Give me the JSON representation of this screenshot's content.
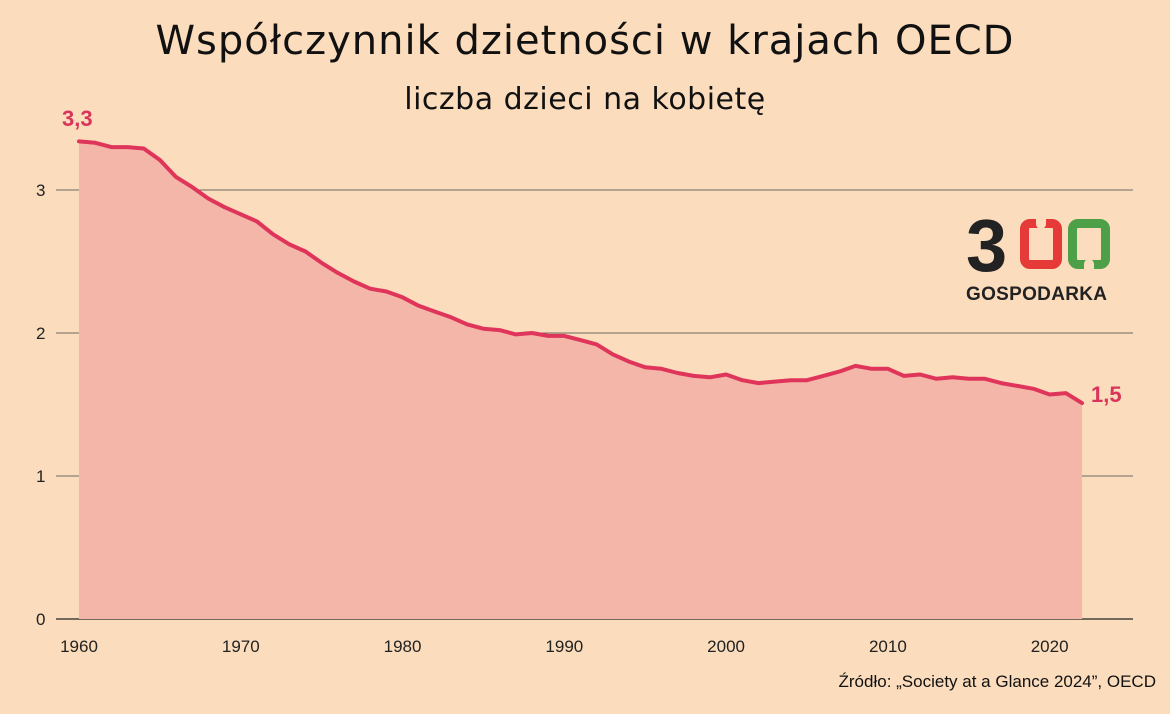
{
  "header": {
    "title": "Współczynnik dzietności w krajach OECD",
    "subtitle": "liczba dzieci na kobietę"
  },
  "source": "Źródło: „Society at a Glance 2024”, OECD",
  "logo": {
    "number": "300",
    "text": "GOSPODARKA"
  },
  "colors": {
    "background": "#fbdcbc",
    "line": "#e0355b",
    "area": "#f4b6a8",
    "grid": "#444444",
    "logo_red": "#e53a37",
    "logo_green": "#4da047"
  },
  "chart_data": {
    "type": "area",
    "title": "Współczynnik dzietności w krajach OECD",
    "subtitle": "liczba dzieci na kobietę",
    "xlabel": "",
    "ylabel": "",
    "xlim": [
      1960,
      2022
    ],
    "ylim": [
      0,
      3.5
    ],
    "xticks": [
      1960,
      1970,
      1980,
      1990,
      2000,
      2010,
      2020
    ],
    "yticks": [
      0,
      1,
      2,
      3
    ],
    "grid": "horizontal",
    "start_label": "3,3",
    "end_label": "1,5",
    "x": [
      1960,
      1961,
      1962,
      1963,
      1964,
      1965,
      1966,
      1967,
      1968,
      1969,
      1970,
      1971,
      1972,
      1973,
      1974,
      1975,
      1976,
      1977,
      1978,
      1979,
      1980,
      1981,
      1982,
      1983,
      1984,
      1985,
      1986,
      1987,
      1988,
      1989,
      1990,
      1991,
      1992,
      1993,
      1994,
      1995,
      1996,
      1997,
      1998,
      1999,
      2000,
      2001,
      2002,
      2003,
      2004,
      2005,
      2006,
      2007,
      2008,
      2009,
      2010,
      2011,
      2012,
      2013,
      2014,
      2015,
      2016,
      2017,
      2018,
      2019,
      2020,
      2021,
      2022
    ],
    "series": [
      {
        "values": [
          3.34,
          3.33,
          3.3,
          3.3,
          3.29,
          3.21,
          3.09,
          3.02,
          2.94,
          2.88,
          2.83,
          2.78,
          2.69,
          2.62,
          2.57,
          2.49,
          2.42,
          2.36,
          2.31,
          2.29,
          2.25,
          2.19,
          2.15,
          2.11,
          2.06,
          2.03,
          2.02,
          1.99,
          2.0,
          1.98,
          1.98,
          1.95,
          1.92,
          1.85,
          1.8,
          1.76,
          1.75,
          1.72,
          1.7,
          1.69,
          1.71,
          1.67,
          1.65,
          1.66,
          1.67,
          1.67,
          1.7,
          1.73,
          1.77,
          1.75,
          1.75,
          1.7,
          1.71,
          1.68,
          1.69,
          1.68,
          1.68,
          1.65,
          1.63,
          1.61,
          1.57,
          1.58,
          1.51
        ]
      }
    ]
  }
}
